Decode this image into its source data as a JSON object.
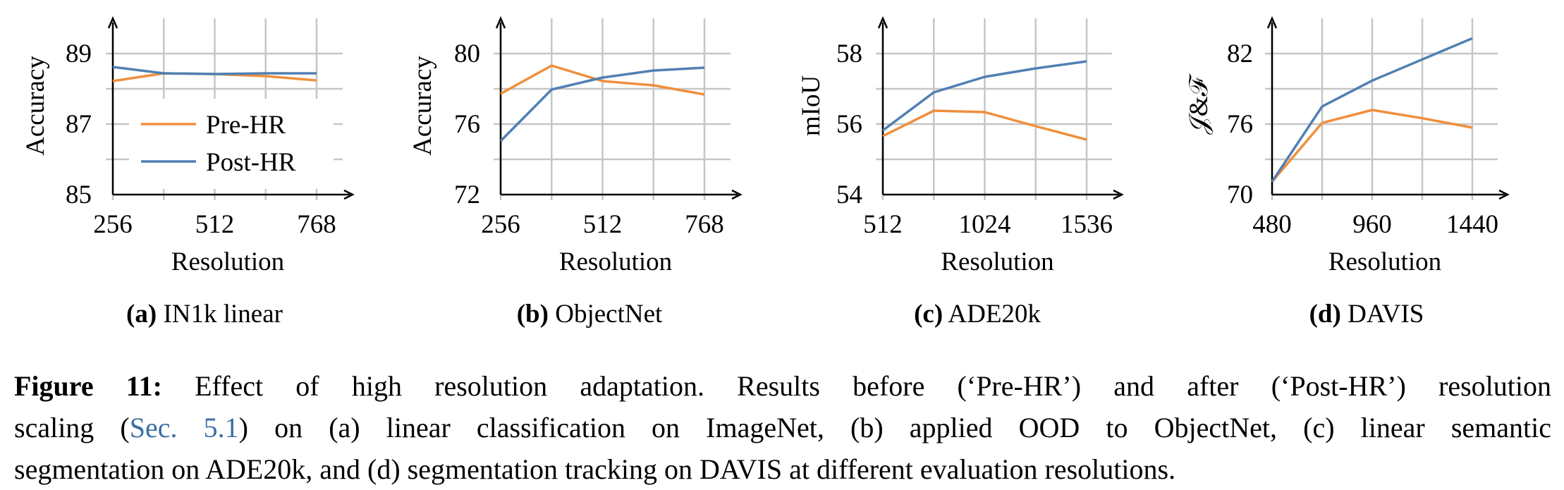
{
  "colors": {
    "pre_hr": "#ef8f3c",
    "post_hr": "#5080b4",
    "grid": "#c6c6c6",
    "link": "#3b6fa3"
  },
  "chart_data": [
    {
      "type": "line",
      "subcaption": {
        "label": "(a)",
        "title": "IN1k linear"
      },
      "xlabel": "Resolution",
      "ylabel": "Accuracy",
      "x": [
        256,
        384,
        512,
        640,
        768
      ],
      "xticks": [
        "256",
        "512",
        "768"
      ],
      "xtick_values": [
        256,
        512,
        768
      ],
      "yticks": [
        "85",
        "87",
        "89"
      ],
      "ytick_values": [
        85,
        87,
        89
      ],
      "xlim": [
        256,
        768
      ],
      "ylim": [
        85,
        90
      ],
      "grid": true,
      "legend": "inside-lower-middle",
      "series": [
        {
          "name": "Pre-HR",
          "values": [
            88.22,
            88.44,
            88.42,
            88.36,
            88.24
          ]
        },
        {
          "name": "Post-HR",
          "values": [
            88.62,
            88.44,
            88.42,
            88.44,
            88.44
          ]
        }
      ]
    },
    {
      "type": "line",
      "subcaption": {
        "label": "(b)",
        "title": "ObjectNet"
      },
      "xlabel": "Resolution",
      "ylabel": "Accuracy",
      "x": [
        256,
        384,
        512,
        640,
        768
      ],
      "xticks": [
        "256",
        "512",
        "768"
      ],
      "xtick_values": [
        256,
        512,
        768
      ],
      "yticks": [
        "72",
        "76",
        "80"
      ],
      "ytick_values": [
        72,
        76,
        80
      ],
      "xlim": [
        256,
        768
      ],
      "ylim": [
        72,
        82
      ],
      "grid": true,
      "series": [
        {
          "name": "Pre-HR",
          "values": [
            77.72,
            79.32,
            78.44,
            78.2,
            77.68
          ]
        },
        {
          "name": "Post-HR",
          "values": [
            75.04,
            77.96,
            78.64,
            79.04,
            79.2
          ]
        }
      ]
    },
    {
      "type": "line",
      "subcaption": {
        "label": "(c)",
        "title": "ADE20k"
      },
      "xlabel": "Resolution",
      "ylabel": "mIoU",
      "x": [
        512,
        768,
        1024,
        1280,
        1536
      ],
      "xticks": [
        "512",
        "1024",
        "1536"
      ],
      "xtick_values": [
        512,
        1024,
        1536
      ],
      "yticks": [
        "54",
        "56",
        "58"
      ],
      "ytick_values": [
        54,
        56,
        58
      ],
      "xlim": [
        512,
        1536
      ],
      "ylim": [
        54,
        59
      ],
      "grid": true,
      "series": [
        {
          "name": "Pre-HR",
          "values": [
            55.66,
            56.38,
            56.34,
            55.94,
            55.56
          ]
        },
        {
          "name": "Post-HR",
          "values": [
            55.82,
            56.9,
            57.34,
            57.58,
            57.78
          ]
        }
      ]
    },
    {
      "type": "line",
      "subcaption": {
        "label": "(d)",
        "title": "DAVIS"
      },
      "xlabel": "Resolution",
      "ylabel": "𝒥&ℱ",
      "x": [
        480,
        720,
        960,
        1200,
        1440
      ],
      "xticks": [
        "480",
        "960",
        "1440"
      ],
      "xtick_values": [
        480,
        960,
        1440
      ],
      "yticks": [
        "70",
        "76",
        "82"
      ],
      "ytick_values": [
        70,
        76,
        82
      ],
      "xlim": [
        480,
        1440
      ],
      "ylim": [
        70,
        85
      ],
      "grid": true,
      "series": [
        {
          "name": "Pre-HR",
          "values": [
            71.1,
            76.1,
            77.2,
            76.5,
            75.7
          ]
        },
        {
          "name": "Post-HR",
          "values": [
            71.1,
            77.5,
            79.7,
            81.5,
            83.3
          ]
        }
      ]
    }
  ],
  "caption": {
    "label": "Figure 11:",
    "line1": " Effect of high resolution adaptation. Results before (‘Pre-HR’) and after (‘Post-HR’) resolution",
    "line2_pre": "scaling (",
    "line2_link": "Sec. 5.1",
    "line2_post": ") on (a) linear classification on ImageNet, (b) applied OOD to ObjectNet, (c) linear semantic",
    "line3": "segmentation on ADE20k, and (d) segmentation tracking on DAVIS at different evaluation resolutions."
  }
}
